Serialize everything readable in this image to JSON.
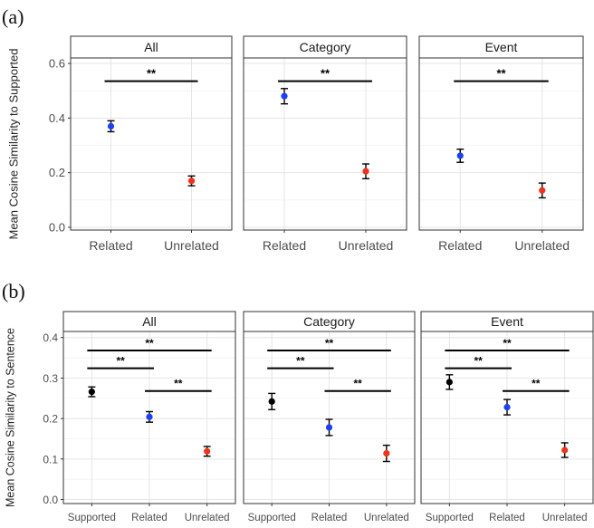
{
  "figure": {
    "panel_a_label": "(a)",
    "panel_b_label": "(b)"
  },
  "colors": {
    "Supported": "#000000",
    "Related": "#1f3ff2",
    "Unrelated": "#f0311c",
    "panel_border": "#333333",
    "strip_bg": "#ffffff",
    "grid_major": "#e5e5e5",
    "grid_minor": "#f2f2f2"
  },
  "chart_data": [
    {
      "id": "a",
      "type": "scatter",
      "ylabel": "Mean Cosine Similarity to Supported",
      "ylim": [
        -0.01,
        0.62
      ],
      "yticks": [
        "0.0",
        "0.2",
        "0.4",
        "0.6"
      ],
      "ytick_values": [
        0.0,
        0.2,
        0.4,
        0.6
      ],
      "categories": [
        "Related",
        "Unrelated"
      ],
      "grid": true,
      "facets": [
        {
          "title": "All",
          "points": [
            {
              "x": "Related",
              "y": 0.37,
              "lo": 0.35,
              "hi": 0.39
            },
            {
              "x": "Unrelated",
              "y": 0.17,
              "lo": 0.152,
              "hi": 0.188
            }
          ],
          "brackets": [
            {
              "from": "Related",
              "to": "Unrelated",
              "y": 0.535,
              "label": "**"
            }
          ]
        },
        {
          "title": "Category",
          "points": [
            {
              "x": "Related",
              "y": 0.48,
              "lo": 0.452,
              "hi": 0.508
            },
            {
              "x": "Unrelated",
              "y": 0.205,
              "lo": 0.178,
              "hi": 0.232
            }
          ],
          "brackets": [
            {
              "from": "Related",
              "to": "Unrelated",
              "y": 0.535,
              "label": "**"
            }
          ]
        },
        {
          "title": "Event",
          "points": [
            {
              "x": "Related",
              "y": 0.262,
              "lo": 0.238,
              "hi": 0.286
            },
            {
              "x": "Unrelated",
              "y": 0.135,
              "lo": 0.108,
              "hi": 0.162
            }
          ],
          "brackets": [
            {
              "from": "Related",
              "to": "Unrelated",
              "y": 0.535,
              "label": "**"
            }
          ]
        }
      ]
    },
    {
      "id": "b",
      "type": "scatter",
      "ylabel": "Mean Cosine Similarity to Sentence",
      "ylim": [
        -0.01,
        0.415
      ],
      "yticks": [
        "0.0",
        "0.1",
        "0.2",
        "0.3",
        "0.4"
      ],
      "ytick_values": [
        0.0,
        0.1,
        0.2,
        0.3,
        0.4
      ],
      "categories": [
        "Supported",
        "Related",
        "Unrelated"
      ],
      "grid": true,
      "facets": [
        {
          "title": "All",
          "points": [
            {
              "x": "Supported",
              "y": 0.266,
              "lo": 0.254,
              "hi": 0.278
            },
            {
              "x": "Related",
              "y": 0.204,
              "lo": 0.191,
              "hi": 0.217
            },
            {
              "x": "Unrelated",
              "y": 0.119,
              "lo": 0.107,
              "hi": 0.131
            }
          ],
          "brackets": [
            {
              "from": "Supported",
              "to": "Unrelated",
              "y": 0.368,
              "label": "**"
            },
            {
              "from": "Supported",
              "to": "Related",
              "y": 0.324,
              "label": "**"
            },
            {
              "from": "Related",
              "to": "Unrelated",
              "y": 0.268,
              "label": "**"
            }
          ]
        },
        {
          "title": "Category",
          "points": [
            {
              "x": "Supported",
              "y": 0.242,
              "lo": 0.222,
              "hi": 0.262
            },
            {
              "x": "Related",
              "y": 0.178,
              "lo": 0.158,
              "hi": 0.198
            },
            {
              "x": "Unrelated",
              "y": 0.114,
              "lo": 0.094,
              "hi": 0.134
            }
          ],
          "brackets": [
            {
              "from": "Supported",
              "to": "Unrelated",
              "y": 0.368,
              "label": "**"
            },
            {
              "from": "Supported",
              "to": "Related",
              "y": 0.324,
              "label": "**"
            },
            {
              "from": "Related",
              "to": "Unrelated",
              "y": 0.268,
              "label": "**"
            }
          ]
        },
        {
          "title": "Event",
          "points": [
            {
              "x": "Supported",
              "y": 0.29,
              "lo": 0.272,
              "hi": 0.308
            },
            {
              "x": "Related",
              "y": 0.228,
              "lo": 0.209,
              "hi": 0.247
            },
            {
              "x": "Unrelated",
              "y": 0.122,
              "lo": 0.104,
              "hi": 0.14
            }
          ],
          "brackets": [
            {
              "from": "Supported",
              "to": "Unrelated",
              "y": 0.368,
              "label": "**"
            },
            {
              "from": "Supported",
              "to": "Related",
              "y": 0.324,
              "label": "**"
            },
            {
              "from": "Related",
              "to": "Unrelated",
              "y": 0.268,
              "label": "**"
            }
          ]
        }
      ]
    }
  ]
}
